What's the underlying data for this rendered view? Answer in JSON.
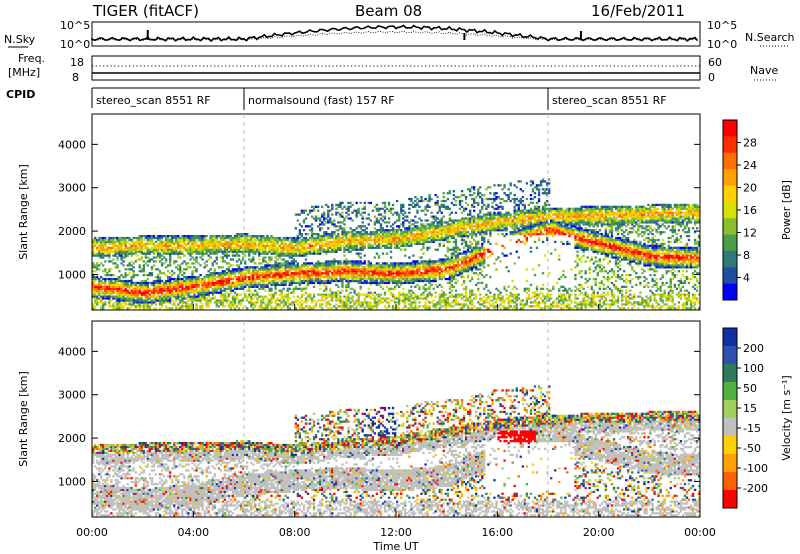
{
  "header": {
    "station": "TIGER (fitACF)",
    "beam": "Beam 08",
    "date": "16/Feb/2011"
  },
  "top_panels": {
    "nsky_label": "N.Sky",
    "nsearch_label": "N.Search",
    "nsky_ticks": [
      "10^5",
      "10^0"
    ],
    "nsky_right_ticks": [
      "10^5",
      "10^0"
    ],
    "freq_label_line1": "Freq.",
    "freq_label_line2": "[MHz]",
    "freq_ticks": [
      "18",
      "8"
    ],
    "nave_ticks": [
      "60",
      "0"
    ],
    "nave_label": "Nave",
    "cpid_label": "CPID",
    "cpid_segments": [
      {
        "text": "stereo_scan 8551 RF",
        "start_hour": 0,
        "end_hour": 6
      },
      {
        "text": "normalsound (fast) 157 RF",
        "start_hour": 6,
        "end_hour": 18
      },
      {
        "text": "stereo_scan 8551 RF",
        "start_hour": 18,
        "end_hour": 24
      }
    ]
  },
  "power_colorbar": {
    "label": "Power [dB]",
    "ticks": [
      "28",
      "24",
      "20",
      "16",
      "12",
      "8",
      "4"
    ],
    "colors": [
      "#ff0000",
      "#ff3000",
      "#ff7000",
      "#ffa000",
      "#ffd000",
      "#d8e000",
      "#88c030",
      "#4c9c4c",
      "#2e7a7a",
      "#1f4fa0",
      "#0000ff"
    ]
  },
  "velocity_colorbar": {
    "label": "Velocity [m s⁻¹]",
    "ticks": [
      "200",
      "100",
      "50",
      "15",
      "-15",
      "-50",
      "-100",
      "-200"
    ],
    "colors": [
      "#1030a0",
      "#3050b0",
      "#2e7a5a",
      "#50b040",
      "#a0d060",
      "#c0c0c0",
      "#ffd000",
      "#ffa000",
      "#ff6000",
      "#ff0000"
    ]
  },
  "x_axis": {
    "label": "Time UT",
    "ticks": [
      "00:00",
      "04:00",
      "08:00",
      "12:00",
      "16:00",
      "20:00",
      "00:00"
    ]
  },
  "chart_data": [
    {
      "type": "heatmap",
      "title": "",
      "xlabel": "Time UT",
      "ylabel": "Slant Range [km]",
      "xlim_hours": [
        0,
        24
      ],
      "ylim_km": [
        180,
        4700
      ],
      "y_ticks": [
        1000,
        2000,
        3000,
        4000
      ],
      "colorbar": "Power [dB]",
      "features": [
        {
          "name": "lower band",
          "points": [
            [
              0,
              700
            ],
            [
              2,
              550
            ],
            [
              4,
              700
            ],
            [
              6,
              900
            ],
            [
              8,
              1000
            ],
            [
              10,
              1050
            ],
            [
              12,
              1000
            ],
            [
              14,
              1100
            ],
            [
              16,
              1600
            ],
            [
              18,
              2000
            ],
            [
              20,
              1700
            ],
            [
              22,
              1400
            ],
            [
              24,
              1350
            ]
          ],
          "value_db": 28
        },
        {
          "name": "upper band",
          "points": [
            [
              0,
              1600
            ],
            [
              2,
              1650
            ],
            [
              4,
              1650
            ],
            [
              6,
              1700
            ],
            [
              8,
              1600
            ],
            [
              10,
              1750
            ],
            [
              12,
              1800
            ],
            [
              14,
              2000
            ],
            [
              16,
              2200
            ],
            [
              18,
              2300
            ],
            [
              24,
              2400
            ]
          ],
          "value_db": 20
        }
      ]
    },
    {
      "type": "heatmap",
      "title": "",
      "xlabel": "Time UT",
      "ylabel": "Slant Range [km]",
      "xlim_hours": [
        0,
        24
      ],
      "ylim_km": [
        180,
        4700
      ],
      "y_ticks": [
        1000,
        2000,
        3000,
        4000
      ],
      "colorbar": "Velocity [m s⁻¹]",
      "features": [
        {
          "name": "ground scatter",
          "value_ms": 0
        },
        {
          "name": "strong receding patch",
          "time_hours": [
            16,
            17.5
          ],
          "range_km": [
            1900,
            2100
          ],
          "value_ms": -200
        },
        {
          "name": "approaching patch",
          "time_hours": [
            10.5,
            12
          ],
          "range_km": [
            2000,
            2700
          ],
          "value_ms": 200
        }
      ]
    }
  ]
}
